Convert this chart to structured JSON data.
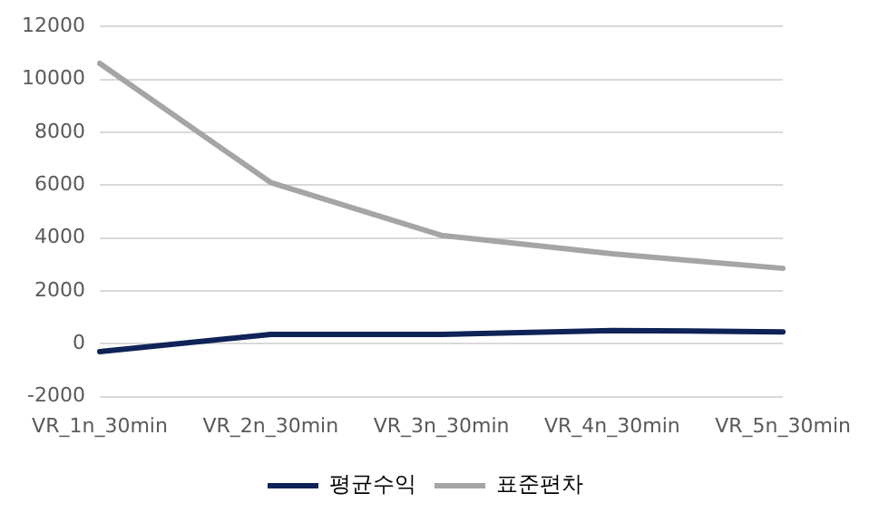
{
  "chart_data": {
    "type": "line",
    "categories": [
      "VR_1n_30min",
      "VR_2n_30min",
      "VR_3n_30min",
      "VR_4n_30min",
      "VR_5n_30min"
    ],
    "series": [
      {
        "name": "평균수익",
        "color": "#0e2356",
        "values": [
          -300,
          350,
          350,
          500,
          450
        ]
      },
      {
        "name": "표준편차",
        "color": "#a5a5a5",
        "values": [
          10600,
          6100,
          4100,
          3400,
          2850
        ]
      }
    ],
    "ylim": [
      -2000,
      12000
    ],
    "yticks": [
      -2000,
      0,
      2000,
      4000,
      6000,
      8000,
      10000,
      12000
    ],
    "grid": "y",
    "legend": "bottom",
    "marker": "none",
    "line_style": "solid"
  }
}
